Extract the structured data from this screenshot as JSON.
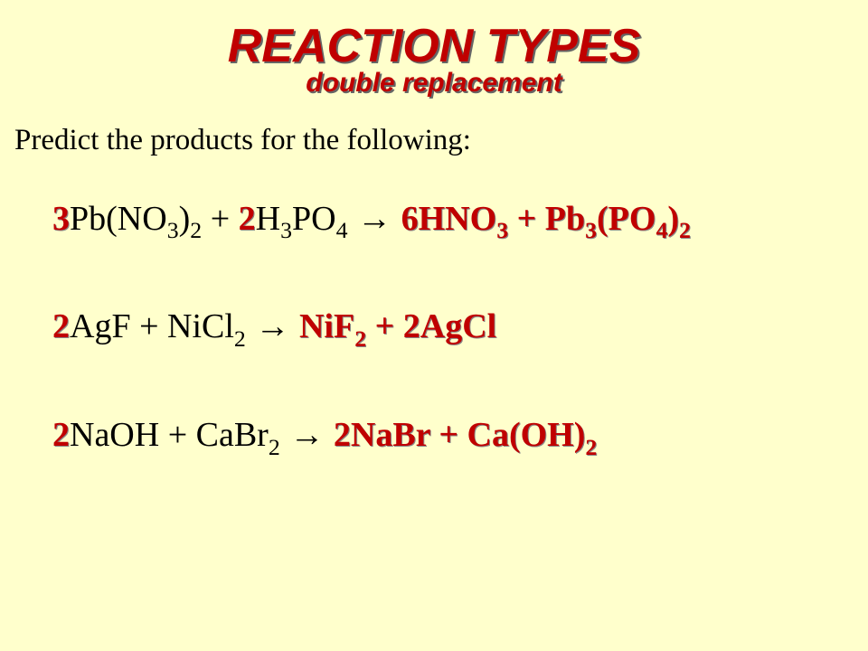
{
  "colors": {
    "background": "#ffffcc",
    "accent": "#c00000",
    "text": "#000000",
    "shadow": "#666666"
  },
  "typography": {
    "title_font": "Comic Sans MS",
    "title_size": 52,
    "subtitle_size": 30,
    "prompt_size": 33,
    "equation_size": 38
  },
  "title": "REACTION TYPES",
  "subtitle": "double replacement",
  "prompt": "Predict the products for the following:",
  "equations": [
    {
      "tokens": [
        {
          "t": "3",
          "cls": "coef-red"
        },
        {
          "t": "Pb(NO",
          "cls": "reactant"
        },
        {
          "t": "3",
          "cls": "reactant",
          "sub": true
        },
        {
          "t": ")",
          "cls": "reactant"
        },
        {
          "t": "2",
          "cls": "reactant",
          "sub": true
        },
        {
          "t": " + ",
          "cls": "reactant"
        },
        {
          "t": "2",
          "cls": "coef-red"
        },
        {
          "t": "H",
          "cls": "reactant"
        },
        {
          "t": "3",
          "cls": "reactant",
          "sub": true
        },
        {
          "t": "PO",
          "cls": "reactant"
        },
        {
          "t": "4",
          "cls": "reactant",
          "sub": true
        },
        {
          "t": " → ",
          "cls": "reactant arrow"
        },
        {
          "t": "6",
          "cls": "coef-red"
        },
        {
          "t": "HNO",
          "cls": "product"
        },
        {
          "t": "3",
          "cls": "product",
          "sub": true
        },
        {
          "t": " + Pb",
          "cls": "product"
        },
        {
          "t": "3",
          "cls": "product",
          "sub": true
        },
        {
          "t": "(PO",
          "cls": "product"
        },
        {
          "t": "4",
          "cls": "product",
          "sub": true
        },
        {
          "t": ")",
          "cls": "product"
        },
        {
          "t": "2",
          "cls": "product",
          "sub": true
        }
      ]
    },
    {
      "tokens": [
        {
          "t": "2",
          "cls": "coef-red"
        },
        {
          "t": "AgF + NiCl",
          "cls": "reactant"
        },
        {
          "t": "2",
          "cls": "reactant",
          "sub": true
        },
        {
          "t": " → ",
          "cls": "reactant arrow"
        },
        {
          "t": "NiF",
          "cls": "product"
        },
        {
          "t": "2",
          "cls": "product",
          "sub": true
        },
        {
          "t": " + ",
          "cls": "product"
        },
        {
          "t": "2",
          "cls": "coef-red"
        },
        {
          "t": "AgCl",
          "cls": "product"
        }
      ]
    },
    {
      "tokens": [
        {
          "t": "2",
          "cls": "coef-red"
        },
        {
          "t": "NaOH + CaBr",
          "cls": "reactant"
        },
        {
          "t": "2",
          "cls": "reactant",
          "sub": true
        },
        {
          "t": " → ",
          "cls": "reactant arrow"
        },
        {
          "t": "2",
          "cls": "coef-red"
        },
        {
          "t": "NaBr + Ca(OH)",
          "cls": "product"
        },
        {
          "t": "2",
          "cls": "product",
          "sub": true
        }
      ]
    }
  ]
}
